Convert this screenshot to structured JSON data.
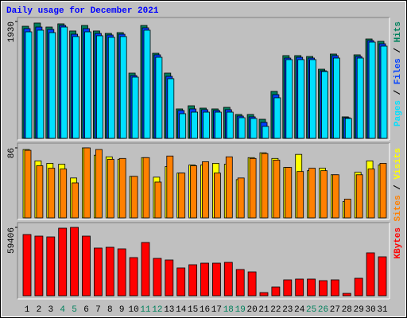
{
  "chart_data": [
    {
      "type": "bar",
      "title": "Daily usage for December 2021",
      "title_color": "#0000ff",
      "ylim": [
        0,
        1930
      ],
      "yticks": [
        1930
      ],
      "legend_separator": " / ",
      "series": [
        {
          "name": "Hits",
          "color": "#00805c",
          "values": [
            1851,
            1904,
            1838,
            1891,
            1773,
            1864,
            1773,
            1733,
            1746,
            1077,
            1864,
            1405,
            1077,
            486,
            538,
            499,
            486,
            512,
            394,
            394,
            315,
            775,
            1366,
            1366,
            1352,
            1142,
            1392,
            355,
            1379,
            1641,
            1602
          ]
        },
        {
          "name": "Files",
          "color": "#0040ff",
          "values": [
            1812,
            1838,
            1799,
            1864,
            1720,
            1812,
            1733,
            1707,
            1720,
            1037,
            1825,
            1379,
            1024,
            460,
            486,
            473,
            460,
            473,
            368,
            355,
            263,
            722,
            1326,
            1339,
            1326,
            1116,
            1366,
            341,
            1352,
            1615,
            1562
          ]
        },
        {
          "name": "Pages",
          "color": "#00e0ff",
          "values": [
            1759,
            1786,
            1746,
            1838,
            1681,
            1759,
            1694,
            1668,
            1681,
            1011,
            1786,
            1339,
            985,
            407,
            433,
            433,
            433,
            433,
            341,
            328,
            197,
            670,
            1300,
            1300,
            1300,
            1103,
            1326,
            328,
            1326,
            1589,
            1523
          ]
        }
      ]
    },
    {
      "type": "bar",
      "ylim": [
        0,
        86
      ],
      "yticks": [
        86
      ],
      "legend_separator": " / ",
      "series": [
        {
          "name": "Visits",
          "color": "#ffff00",
          "values": [
            84,
            70,
            67,
            66,
            49,
            86,
            77,
            75,
            72,
            51,
            74,
            50,
            63,
            55,
            65,
            65,
            67,
            66,
            47,
            74,
            80,
            73,
            62,
            78,
            58,
            61,
            53,
            20,
            56,
            70,
            65
          ]
        },
        {
          "name": "Sites",
          "color": "#ff8000",
          "values": [
            83,
            64,
            61,
            60,
            43,
            86,
            84,
            72,
            73,
            51,
            74,
            44,
            76,
            55,
            64,
            69,
            55,
            75,
            49,
            73,
            79,
            71,
            62,
            57,
            61,
            58,
            53,
            23,
            53,
            60,
            67
          ]
        }
      ]
    },
    {
      "type": "bar",
      "ylim": [
        0,
        59406
      ],
      "yticks": [
        59406
      ],
      "series": [
        {
          "name": "KBytes",
          "color": "#ff0000",
          "values": [
            53192,
            51810,
            51119,
            58718,
            59406,
            51810,
            41448,
            42139,
            40757,
            33158,
            46284,
            32468,
            31086,
            24178,
            26941,
            28323,
            28323,
            29014,
            22796,
            20724,
            2763,
            7599,
            13816,
            14507,
            14507,
            13125,
            13816,
            2072,
            15198,
            37303,
            33849
          ]
        }
      ],
      "categories": [
        "1",
        "2",
        "3",
        "4",
        "5",
        "6",
        "7",
        "8",
        "9",
        "10",
        "11",
        "12",
        "13",
        "14",
        "15",
        "16",
        "17",
        "18",
        "19",
        "20",
        "21",
        "22",
        "23",
        "24",
        "25",
        "26",
        "27",
        "28",
        "29",
        "30",
        "31"
      ],
      "category_colors": [
        "#000000",
        "#000000",
        "#000000",
        "#00805c",
        "#00805c",
        "#000000",
        "#000000",
        "#000000",
        "#000000",
        "#000000",
        "#00805c",
        "#00805c",
        "#000000",
        "#000000",
        "#000000",
        "#000000",
        "#000000",
        "#00805c",
        "#00805c",
        "#000000",
        "#000000",
        "#000000",
        "#000000",
        "#000000",
        "#00805c",
        "#00805c",
        "#000000",
        "#000000",
        "#000000",
        "#000000",
        "#000000"
      ]
    }
  ]
}
